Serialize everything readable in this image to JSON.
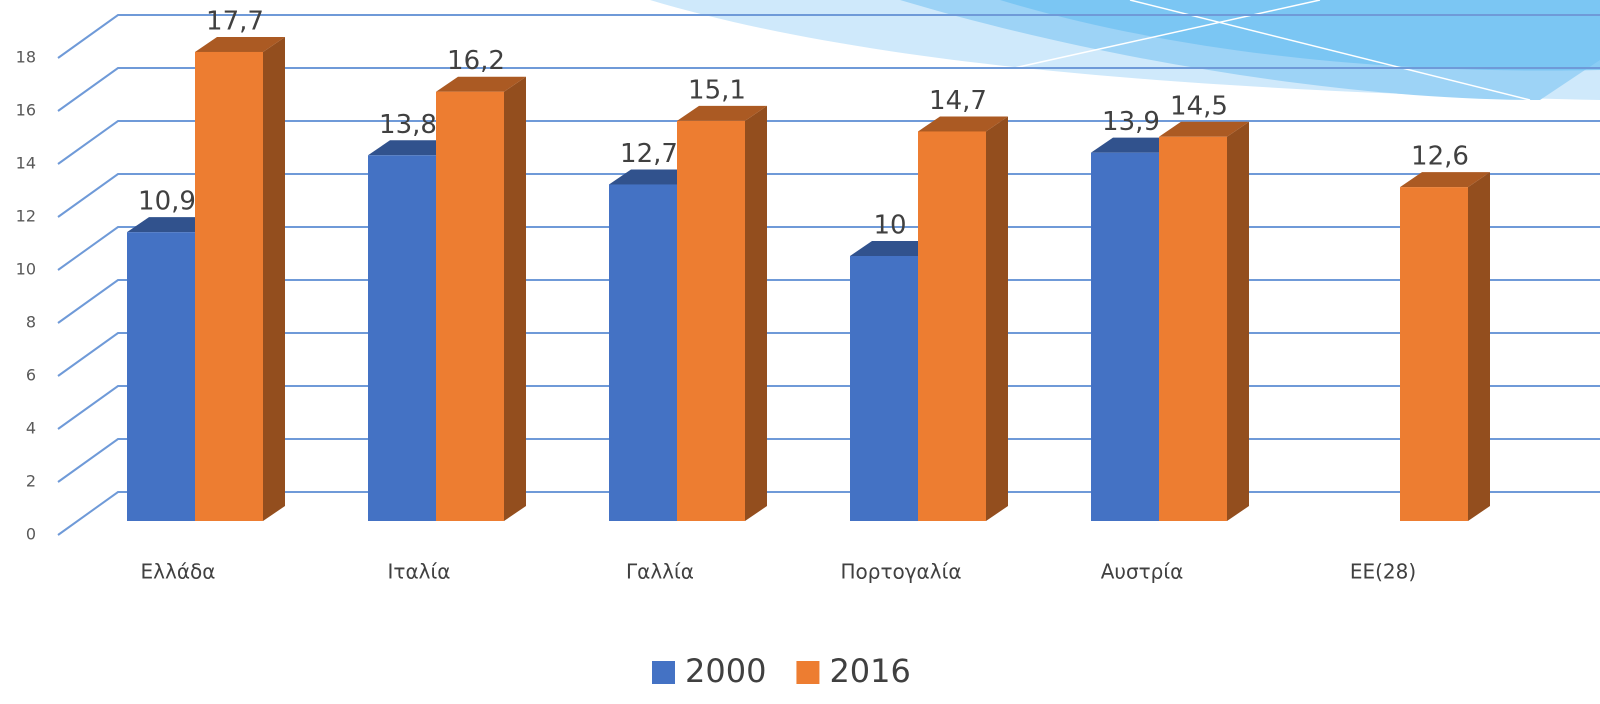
{
  "chart_data": {
    "type": "bar3d",
    "categories": [
      "Ελλάδα",
      "Ιταλία",
      "Γαλλία",
      "Πορτογαλία",
      "Αυστρία",
      "ΕΕ(28)"
    ],
    "series": [
      {
        "name": "2000",
        "color": "#4472c4",
        "values": [
          10.9,
          13.8,
          12.7,
          10,
          13.9,
          null
        ],
        "value_labels": [
          "10,9",
          "13,8",
          "12,7",
          "10",
          "13,9",
          null
        ]
      },
      {
        "name": "2016",
        "color": "#ed7d31",
        "values": [
          17.7,
          16.2,
          15.1,
          14.7,
          14.5,
          12.6
        ],
        "value_labels": [
          "17,7",
          "16,2",
          "15,1",
          "14,7",
          "14,5",
          "12,6"
        ]
      }
    ],
    "ylim": [
      0,
      18
    ],
    "yticks": [
      0,
      2,
      4,
      6,
      8,
      10,
      12,
      14,
      16,
      18
    ],
    "grid": true,
    "legend": "bottom"
  }
}
